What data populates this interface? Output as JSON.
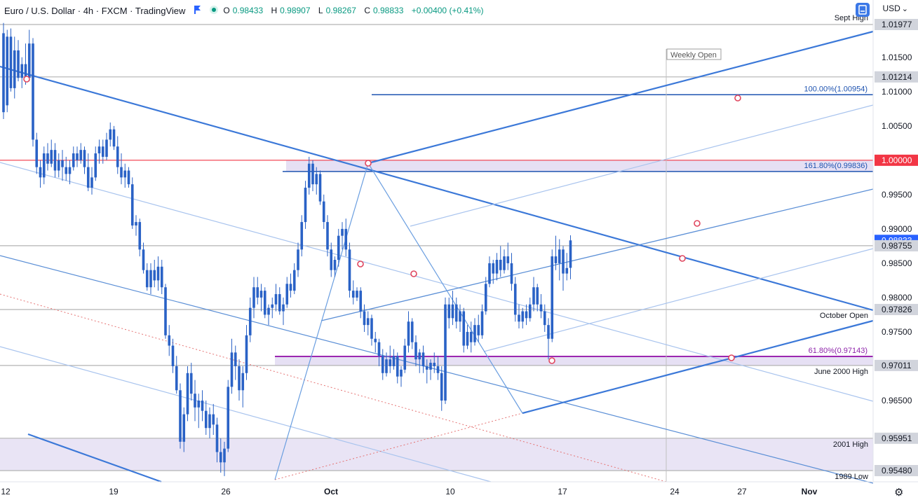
{
  "header": {
    "symbol": "Euro / U.S. Dollar · 4h · FXCM · TradingView",
    "open_label": "O",
    "open": "0.98433",
    "high_label": "H",
    "high": "0.98907",
    "low_label": "L",
    "low": "0.98267",
    "close_label": "C",
    "close": "0.98833",
    "change": "+0.00400 (+0.41%)",
    "currency": "USD"
  },
  "icons": {
    "flag": "flag-icon",
    "status": "status-dot-icon",
    "compare": "compare-icon",
    "settings": "gear-icon"
  },
  "chart_data": {
    "type": "candlestick",
    "title": "Euro / U.S. Dollar · 4h · FXCM · TradingView",
    "ylim": [
      0.953,
      1.0215
    ],
    "y_ticks": [
      "1.01500",
      "1.01000",
      "1.00500",
      "0.99500",
      "0.99000",
      "0.98500",
      "0.98000",
      "0.97500",
      "0.96500"
    ],
    "x_ticks": [
      "12",
      "19",
      "26",
      "Oct",
      "10",
      "17",
      "24",
      "27",
      "Nov"
    ],
    "price_labels": [
      {
        "value": 1.01977,
        "text": "1.01977",
        "name": "Sept High"
      },
      {
        "value": 1.01214,
        "text": "1.01214",
        "name": ""
      },
      {
        "value": 1.0,
        "text": "1.00000",
        "name": ""
      },
      {
        "value": 0.98755,
        "text": "0.98755",
        "name": ""
      },
      {
        "value": 0.97826,
        "text": "0.97826",
        "name": "October Open"
      },
      {
        "value": 0.97011,
        "text": "0.97011",
        "name": "June 2000 High"
      },
      {
        "value": 0.95951,
        "text": "0.95951",
        "name": "2001 High"
      },
      {
        "value": 0.9548,
        "text": "0.95480",
        "name": "1989 Low"
      }
    ],
    "fib_labels": [
      {
        "value": 1.00954,
        "text": "100.00%(1.00954)",
        "color": "#1e53b0"
      },
      {
        "value": 0.99836,
        "text": "161.80%(0.99836)",
        "color": "#1e53b0"
      },
      {
        "value": 0.97143,
        "text": "61.80%(0.97143)",
        "color": "#8e24aa"
      }
    ],
    "annotations": [
      "Weekly Open"
    ],
    "last_price": 0.98833,
    "colors": {
      "candle": "#2a62c6",
      "trendline": "#3b78d8",
      "trendline_light": "#a9c4ee",
      "fib_line": "#1e53b0",
      "parity": "#f23645",
      "fib_purple": "#9c27b0",
      "zone": "#e3ddf3",
      "level": "#b3b3b3",
      "marker": "#e0465e"
    },
    "candles": [
      [
        1.0185,
        1.02,
        1.006,
        1.007
      ],
      [
        1.008,
        1.019,
        1.007,
        1.018
      ],
      [
        1.018,
        1.0192,
        1.01,
        1.0105
      ],
      [
        1.0105,
        1.018,
        1.009,
        1.016
      ],
      [
        1.016,
        1.0175,
        1.0115,
        1.012
      ],
      [
        1.012,
        1.015,
        1.0105,
        1.014
      ],
      [
        1.014,
        1.017,
        1.011,
        1.012
      ],
      [
        1.012,
        1.019,
        1.0115,
        1.017
      ],
      [
        1.017,
        1.0178,
        1.002,
        1.003
      ],
      [
        1.003,
        1.004,
        0.998,
        0.999
      ],
      [
        0.999,
        1.0,
        0.996,
        0.9975
      ],
      [
        0.9975,
        1.002,
        0.9965,
        1.001
      ],
      [
        1.001,
        1.0025,
        0.9985,
        0.9995
      ],
      [
        0.9995,
        1.003,
        0.999,
        1.0015
      ],
      [
        1.0015,
        1.0025,
        0.9975,
        0.9985
      ],
      [
        0.9985,
        1.001,
        0.9975,
        1.0
      ],
      [
        1.0,
        1.0015,
        0.997,
        0.999
      ],
      [
        0.999,
        1.0005,
        0.997,
        0.998
      ],
      [
        0.998,
        1.0,
        0.9965,
        0.999
      ],
      [
        0.999,
        1.002,
        0.9985,
        1.001
      ],
      [
        1.001,
        1.002,
        0.999,
        1.0
      ],
      [
        1.0,
        1.0025,
        0.9995,
        1.0015
      ],
      [
        1.0015,
        1.002,
        0.998,
        0.999
      ],
      [
        0.999,
        1.001,
        0.9955,
        0.996
      ],
      [
        0.996,
        0.999,
        0.995,
        0.9975
      ],
      [
        0.9975,
        1.002,
        0.997,
        1.001
      ],
      [
        1.001,
        1.003,
        0.9995,
        1.002
      ],
      [
        1.002,
        1.003,
        0.9995,
        1.0005
      ],
      [
        1.0005,
        1.004,
        1.0,
        1.003
      ],
      [
        1.003,
        1.0055,
        1.002,
        1.0045
      ],
      [
        1.0045,
        1.005,
        1.0015,
        1.002
      ],
      [
        1.002,
        1.0035,
        0.998,
        0.999
      ],
      [
        0.999,
        1.001,
        0.9965,
        0.9975
      ],
      [
        0.9975,
        0.9995,
        0.996,
        0.9985
      ],
      [
        0.9985,
        0.999,
        0.996,
        0.9965
      ],
      [
        0.9965,
        0.9975,
        0.99,
        0.9905
      ],
      [
        0.9905,
        0.992,
        0.989,
        0.991
      ],
      [
        0.991,
        0.9915,
        0.986,
        0.987
      ],
      [
        0.987,
        0.988,
        0.9835,
        0.984
      ],
      [
        0.984,
        0.985,
        0.981,
        0.9815
      ],
      [
        0.9815,
        0.985,
        0.9805,
        0.984
      ],
      [
        0.984,
        0.9855,
        0.9815,
        0.9825
      ],
      [
        0.9825,
        0.986,
        0.981,
        0.9845
      ],
      [
        0.9845,
        0.9855,
        0.9805,
        0.9815
      ],
      [
        0.9815,
        0.982,
        0.974,
        0.9745
      ],
      [
        0.9745,
        0.976,
        0.9715,
        0.973
      ],
      [
        0.973,
        0.974,
        0.969,
        0.97
      ],
      [
        0.97,
        0.9715,
        0.966,
        0.9665
      ],
      [
        0.9665,
        0.9675,
        0.958,
        0.959
      ],
      [
        0.959,
        0.964,
        0.9575,
        0.963
      ],
      [
        0.963,
        0.97,
        0.962,
        0.969
      ],
      [
        0.969,
        0.9705,
        0.965,
        0.966
      ],
      [
        0.966,
        0.968,
        0.962,
        0.964
      ],
      [
        0.964,
        0.966,
        0.961,
        0.965
      ],
      [
        0.965,
        0.9665,
        0.962,
        0.9635
      ],
      [
        0.9635,
        0.965,
        0.96,
        0.961
      ],
      [
        0.961,
        0.964,
        0.9595,
        0.963
      ],
      [
        0.963,
        0.9645,
        0.96,
        0.9615
      ],
      [
        0.9615,
        0.9625,
        0.956,
        0.9575
      ],
      [
        0.9575,
        0.9595,
        0.9545,
        0.956
      ],
      [
        0.956,
        0.959,
        0.954,
        0.958
      ],
      [
        0.958,
        0.968,
        0.9575,
        0.967
      ],
      [
        0.967,
        0.974,
        0.966,
        0.972
      ],
      [
        0.972,
        0.973,
        0.968,
        0.97
      ],
      [
        0.97,
        0.971,
        0.965,
        0.9665
      ],
      [
        0.9665,
        0.97,
        0.964,
        0.969
      ],
      [
        0.969,
        0.976,
        0.968,
        0.9745
      ],
      [
        0.9745,
        0.98,
        0.9735,
        0.9785
      ],
      [
        0.9785,
        0.983,
        0.977,
        0.9815
      ],
      [
        0.9815,
        0.983,
        0.979,
        0.98
      ],
      [
        0.98,
        0.982,
        0.978,
        0.981
      ],
      [
        0.981,
        0.9815,
        0.977,
        0.9775
      ],
      [
        0.9775,
        0.979,
        0.976,
        0.9785
      ],
      [
        0.9785,
        0.98,
        0.977,
        0.979
      ],
      [
        0.979,
        0.982,
        0.978,
        0.9805
      ],
      [
        0.9805,
        0.9815,
        0.9775,
        0.978
      ],
      [
        0.978,
        0.98,
        0.976,
        0.979
      ],
      [
        0.979,
        0.983,
        0.9785,
        0.982
      ],
      [
        0.982,
        0.9835,
        0.98,
        0.981
      ],
      [
        0.981,
        0.985,
        0.9805,
        0.984
      ],
      [
        0.984,
        0.988,
        0.983,
        0.987
      ],
      [
        0.987,
        0.992,
        0.986,
        0.991
      ],
      [
        0.991,
        0.997,
        0.99,
        0.996
      ],
      [
        0.996,
        1.0005,
        0.995,
        0.9995
      ],
      [
        0.9995,
        1.0,
        0.9955,
        0.9965
      ],
      [
        0.9965,
        0.999,
        0.995,
        0.998
      ],
      [
        0.998,
        0.9985,
        0.9935,
        0.994
      ],
      [
        0.994,
        0.995,
        0.99,
        0.991
      ],
      [
        0.991,
        0.992,
        0.986,
        0.987
      ],
      [
        0.987,
        0.988,
        0.983,
        0.984
      ],
      [
        0.984,
        0.986,
        0.983,
        0.9855
      ],
      [
        0.9855,
        0.99,
        0.9845,
        0.989
      ],
      [
        0.989,
        0.991,
        0.987,
        0.99
      ],
      [
        0.99,
        0.9915,
        0.986,
        0.987
      ],
      [
        0.987,
        0.988,
        0.98,
        0.981
      ],
      [
        0.981,
        0.9825,
        0.979,
        0.98
      ],
      [
        0.98,
        0.9815,
        0.9795,
        0.981
      ],
      [
        0.981,
        0.9815,
        0.977,
        0.978
      ],
      [
        0.978,
        0.979,
        0.975,
        0.976
      ],
      [
        0.976,
        0.978,
        0.9745,
        0.977
      ],
      [
        0.977,
        0.9775,
        0.973,
        0.974
      ],
      [
        0.974,
        0.975,
        0.972,
        0.9735
      ],
      [
        0.9735,
        0.974,
        0.97,
        0.9715
      ],
      [
        0.9715,
        0.9725,
        0.968,
        0.969
      ],
      [
        0.969,
        0.972,
        0.9685,
        0.971
      ],
      [
        0.971,
        0.973,
        0.969,
        0.97
      ],
      [
        0.97,
        0.9725,
        0.9695,
        0.9715
      ],
      [
        0.9715,
        0.972,
        0.9675,
        0.9685
      ],
      [
        0.9685,
        0.97,
        0.967,
        0.9695
      ],
      [
        0.9695,
        0.974,
        0.969,
        0.973
      ],
      [
        0.973,
        0.978,
        0.972,
        0.9765
      ],
      [
        0.9765,
        0.977,
        0.9725,
        0.9735
      ],
      [
        0.9735,
        0.9745,
        0.97,
        0.971
      ],
      [
        0.971,
        0.9725,
        0.969,
        0.972
      ],
      [
        0.972,
        0.973,
        0.969,
        0.97
      ],
      [
        0.97,
        0.971,
        0.9675,
        0.9695
      ],
      [
        0.9695,
        0.971,
        0.968,
        0.9705
      ],
      [
        0.9705,
        0.972,
        0.969,
        0.97
      ],
      [
        0.97,
        0.9715,
        0.968,
        0.969
      ],
      [
        0.969,
        0.97,
        0.9635,
        0.965
      ],
      [
        0.965,
        0.98,
        0.9645,
        0.979
      ],
      [
        0.979,
        0.98,
        0.9755,
        0.977
      ],
      [
        0.977,
        0.981,
        0.976,
        0.979
      ],
      [
        0.979,
        0.98,
        0.9755,
        0.9765
      ],
      [
        0.9765,
        0.979,
        0.975,
        0.978
      ],
      [
        0.978,
        0.9785,
        0.972,
        0.973
      ],
      [
        0.973,
        0.976,
        0.9725,
        0.975
      ],
      [
        0.975,
        0.9765,
        0.972,
        0.9735
      ],
      [
        0.9735,
        0.977,
        0.973,
        0.976
      ],
      [
        0.976,
        0.9775,
        0.9735,
        0.9745
      ],
      [
        0.9745,
        0.979,
        0.974,
        0.978
      ],
      [
        0.978,
        0.983,
        0.9775,
        0.982
      ],
      [
        0.982,
        0.986,
        0.9815,
        0.985
      ],
      [
        0.985,
        0.9855,
        0.982,
        0.9835
      ],
      [
        0.9835,
        0.9865,
        0.9825,
        0.9855
      ],
      [
        0.9855,
        0.9875,
        0.983,
        0.984
      ],
      [
        0.984,
        0.987,
        0.9835,
        0.986
      ],
      [
        0.986,
        0.988,
        0.984,
        0.985
      ],
      [
        0.985,
        0.9865,
        0.981,
        0.982
      ],
      [
        0.982,
        0.983,
        0.9765,
        0.9775
      ],
      [
        0.9775,
        0.979,
        0.9755,
        0.9765
      ],
      [
        0.9765,
        0.9785,
        0.9755,
        0.978
      ],
      [
        0.978,
        0.979,
        0.976,
        0.977
      ],
      [
        0.977,
        0.98,
        0.9765,
        0.979
      ],
      [
        0.979,
        0.983,
        0.978,
        0.9815
      ],
      [
        0.9815,
        0.982,
        0.978,
        0.979
      ],
      [
        0.979,
        0.9805,
        0.977,
        0.978
      ],
      [
        0.978,
        0.979,
        0.975,
        0.976
      ],
      [
        0.976,
        0.977,
        0.971,
        0.974
      ],
      [
        0.974,
        0.987,
        0.9735,
        0.986
      ],
      [
        0.986,
        0.989,
        0.984,
        0.985
      ],
      [
        0.985,
        0.9885,
        0.9825,
        0.987
      ],
      [
        0.987,
        0.9875,
        0.981,
        0.9835
      ],
      [
        0.9835,
        0.9865,
        0.9825,
        0.9843
      ],
      [
        0.98433,
        0.98907,
        0.98267,
        0.98833
      ]
    ],
    "x_labels_candle_index": [
      0,
      30,
      60,
      72,
      102,
      132,
      155,
      165,
      183
    ]
  }
}
